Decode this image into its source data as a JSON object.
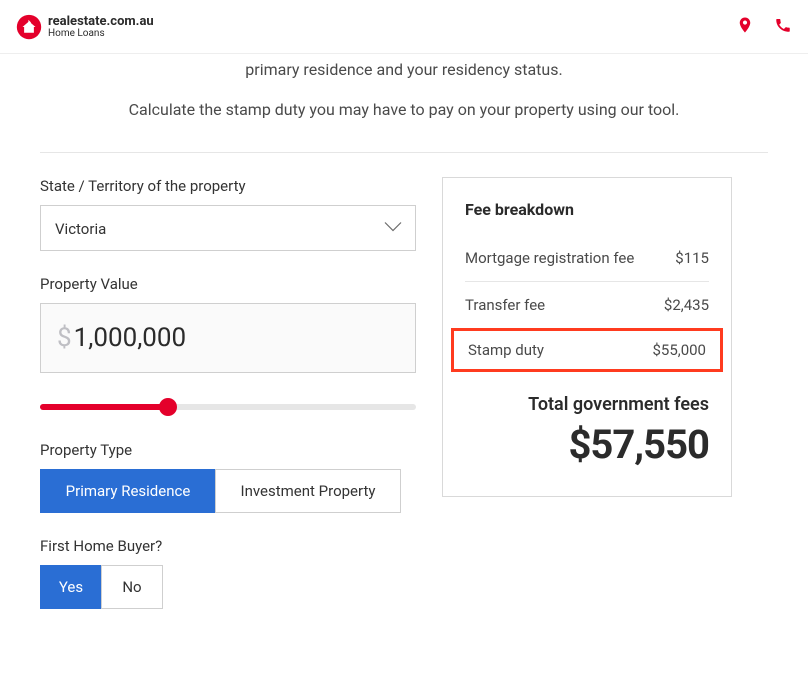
{
  "brand": {
    "line1": "realestate.com.au",
    "line2": "Home Loans",
    "logo_color": "#e4002b"
  },
  "topbar_icon_color": "#e4002b",
  "intro": {
    "line1": "primary residence and your residency status.",
    "line2": "Calculate the stamp duty you may have to pay on your property using our tool."
  },
  "form": {
    "state_label": "State / Territory of the property",
    "state_value": "Victoria",
    "value_label": "Property Value",
    "value_amount": "1,000,000",
    "slider_percent": 34,
    "property_type_label": "Property Type",
    "property_type_options": {
      "primary": "Primary Residence",
      "investment": "Investment Property"
    },
    "property_type_active": "primary",
    "fhb_label": "First Home Buyer?",
    "fhb_options": {
      "yes": "Yes",
      "no": "No"
    },
    "fhb_active": "yes"
  },
  "fees": {
    "title": "Fee breakdown",
    "rows": {
      "mortgage": {
        "label": "Mortgage registration fee",
        "value": "$115"
      },
      "transfer": {
        "label": "Transfer fee",
        "value": "$2,435"
      },
      "stamp": {
        "label": "Stamp duty",
        "value": "$55,000"
      }
    },
    "highlight_color": "#ff3b1f",
    "total_label": "Total government fees",
    "total_value": "$57,550"
  },
  "colors": {
    "accent_blue": "#2a6ed4",
    "accent_red": "#e4002b",
    "border": "#cfcfcf",
    "text": "#333333",
    "muted_bg": "#fafafa"
  }
}
